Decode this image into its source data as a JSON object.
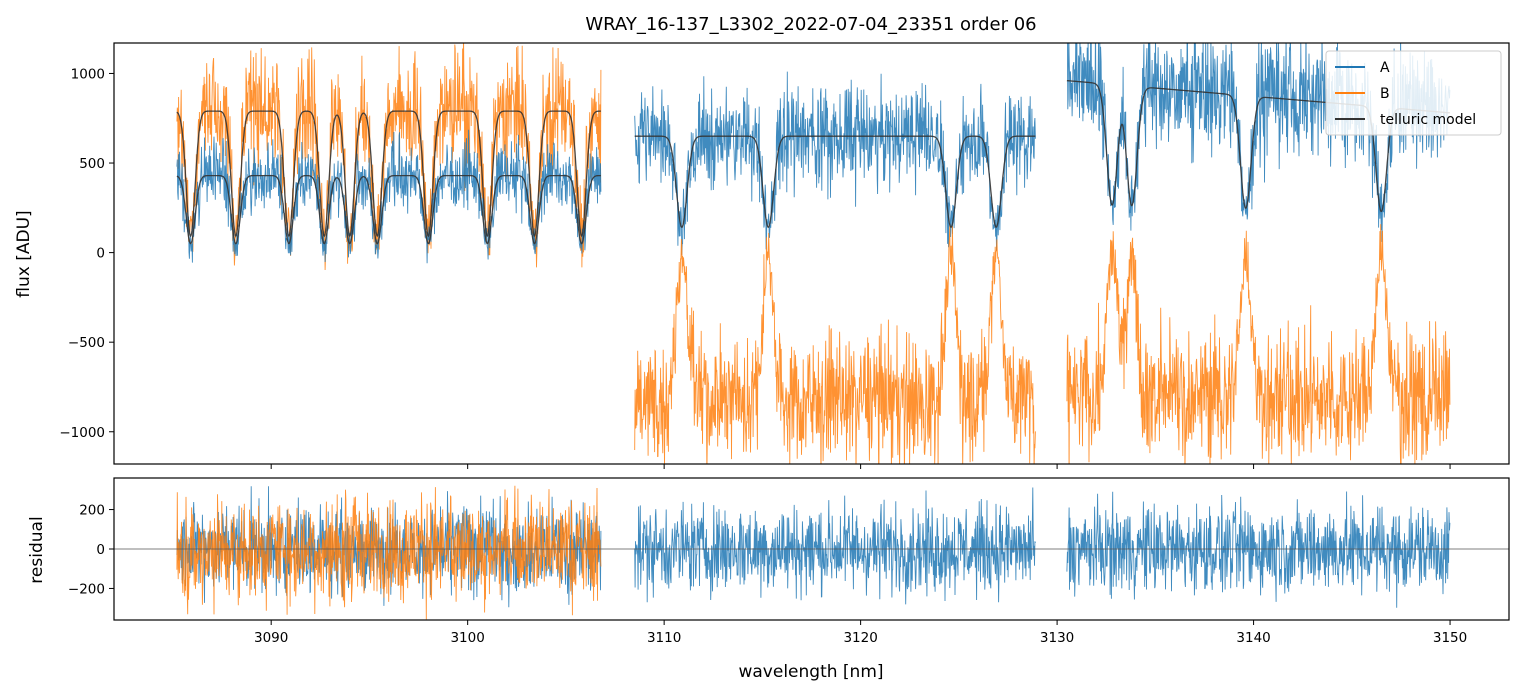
{
  "chart_data": {
    "type": "line",
    "title": "WRAY_16-137_L3302_2022-07-04_23351  order 06",
    "xlabel": "wavelength [nm]",
    "xlim": [
      3082,
      3153
    ],
    "xticks": [
      3090,
      3100,
      3110,
      3120,
      3130,
      3140,
      3150
    ],
    "colors": {
      "A": "#1f77b4",
      "B": "#ff7f0e",
      "model": "#333333"
    },
    "top_panel": {
      "ylabel": "flux [ADU]",
      "ylim": [
        -1180,
        1170
      ],
      "yticks": [
        1000,
        500,
        0,
        -500,
        -1000
      ],
      "ytick_labels": [
        "1000",
        "500",
        "0",
        "−500",
        "−1000"
      ],
      "legend": {
        "location": "top-right",
        "entries": [
          "A",
          "B",
          "telluric model"
        ]
      },
      "segments": [
        {
          "x_range": [
            3085.2,
            3106.8
          ],
          "A": {
            "continuum": 430,
            "noise": 95
          },
          "B": {
            "continuum": 780,
            "noise": 170
          },
          "model_A_continuum": 430,
          "model_B_continuum": 790,
          "absorption_lines_nm": [
            3085.9,
            3088.2,
            3090.9,
            3092.7,
            3094.0,
            3095.4,
            3098.0,
            3101.0,
            3103.4,
            3105.8
          ],
          "line_depth": 0.9
        },
        {
          "x_range": [
            3108.5,
            3128.9
          ],
          "A": {
            "continuum": 640,
            "noise": 140
          },
          "B": {
            "continuum": -820,
            "noise": 180
          },
          "model_continuum": 650,
          "absorption_lines_nm": [
            3110.9,
            3115.3,
            3124.6,
            3126.9
          ],
          "line_depth": 0.85
        },
        {
          "x_range": [
            3130.5,
            3150.0
          ],
          "A": {
            "continuum": 800,
            "noise": 170
          },
          "B": {
            "continuum": -790,
            "noise": 180
          },
          "model_continuum_start": 960,
          "model_continuum_end": 780,
          "absorption_lines_nm": [
            3132.8,
            3133.8,
            3139.6,
            3146.5
          ],
          "line_depth": 0.78
        }
      ]
    },
    "bottom_panel": {
      "ylabel": "residual",
      "ylim": [
        -360,
        360
      ],
      "yticks": [
        200,
        0,
        -200
      ],
      "ytick_labels": [
        "200",
        "0",
        "−200"
      ],
      "zero_line": 0,
      "residual_noise_A": 110,
      "residual_noise_B": 130,
      "B_residual_x_range": [
        3085.2,
        3106.8
      ]
    }
  }
}
